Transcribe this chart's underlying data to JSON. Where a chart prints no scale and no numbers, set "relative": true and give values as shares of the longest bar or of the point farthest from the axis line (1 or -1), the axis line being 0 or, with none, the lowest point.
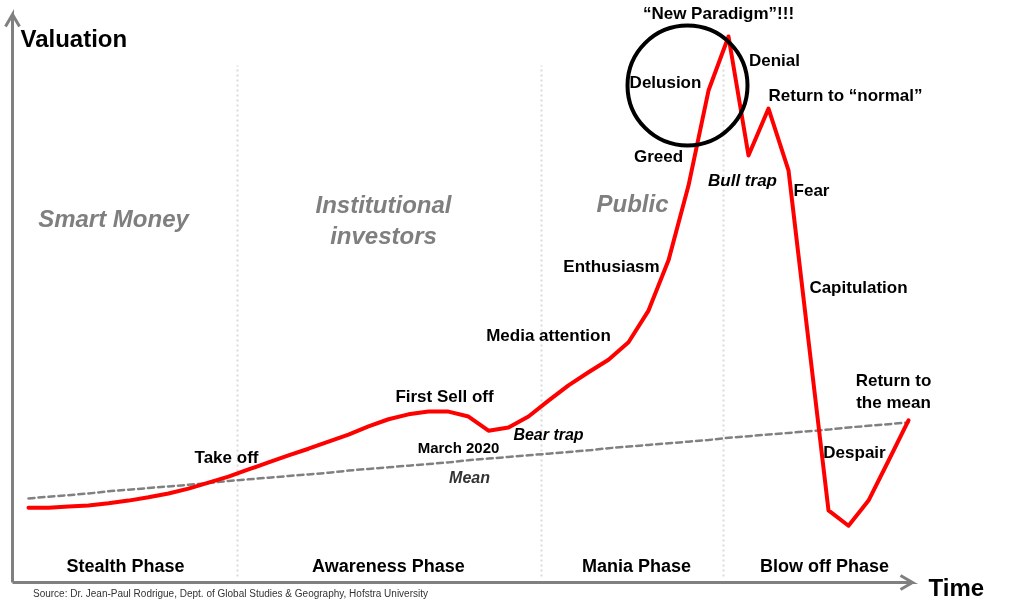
{
  "chart_data": {
    "type": "line",
    "relative": true,
    "ylabel": "Valuation",
    "xlabel": "Time",
    "categories": [
      null,
      null,
      null,
      null,
      null,
      null,
      null,
      null,
      null,
      null,
      null,
      null,
      null,
      null,
      null,
      null,
      null,
      null,
      null,
      null,
      null,
      null,
      null,
      null,
      null,
      null,
      null,
      null,
      null,
      null,
      null,
      null,
      null,
      null,
      null,
      null,
      null,
      null,
      null,
      null,
      null,
      null,
      null,
      null,
      null
    ],
    "series": [
      {
        "color": "#ff0000",
        "line_style": "solid",
        "values": [
          0.137,
          0.137,
          0.139,
          0.141,
          0.145,
          0.15,
          0.156,
          0.163,
          0.172,
          0.183,
          0.194,
          0.207,
          0.22,
          0.233,
          0.245,
          0.258,
          0.271,
          0.286,
          0.299,
          0.308,
          0.313,
          0.313,
          0.304,
          0.278,
          0.284,
          0.304,
          0.333,
          0.361,
          0.385,
          0.408,
          0.44,
          0.498,
          0.59,
          0.727,
          0.901,
          1.0,
          0.782,
          0.868,
          0.755,
          0.443,
          0.132,
          0.104,
          0.15,
          0.223,
          0.297
        ]
      },
      {
        "color": "#808080",
        "line_style": "dashed",
        "values": [
          0.154,
          0.157,
          0.16,
          0.163,
          0.167,
          0.17,
          0.173,
          0.176,
          0.179,
          0.182,
          0.186,
          0.189,
          0.192,
          0.195,
          0.198,
          0.201,
          0.205,
          0.208,
          0.211,
          0.214,
          0.217,
          0.22,
          0.224,
          0.227,
          0.23,
          0.233,
          0.236,
          0.239,
          0.242,
          0.246,
          0.249,
          0.252,
          0.255,
          0.258,
          0.261,
          0.265,
          0.268,
          0.271,
          0.274,
          0.277,
          0.28,
          0.284,
          0.287,
          0.29,
          0.293
        ]
      }
    ],
    "annotations": [
      "“New Paradigm”!!!",
      "Delusion",
      "Denial",
      "Return to “normal”",
      "Greed",
      "Bull trap",
      "Fear",
      "Enthusiasm",
      "Capitulation",
      "Media attention",
      "Return to\nthe mean",
      "First Sell off",
      "March 2020",
      "Bear trap",
      "Take off",
      "Despair",
      "Mean",
      "Smart Money",
      "Institutional\ninvestors",
      "Public",
      "Stealth Phase",
      "Awareness Phase",
      "Mania Phase",
      "Blow off Phase",
      "Source: Dr. Jean-Paul Rodrigue, Dept. of Global Studies & Geography, Hofstra University"
    ]
  }
}
